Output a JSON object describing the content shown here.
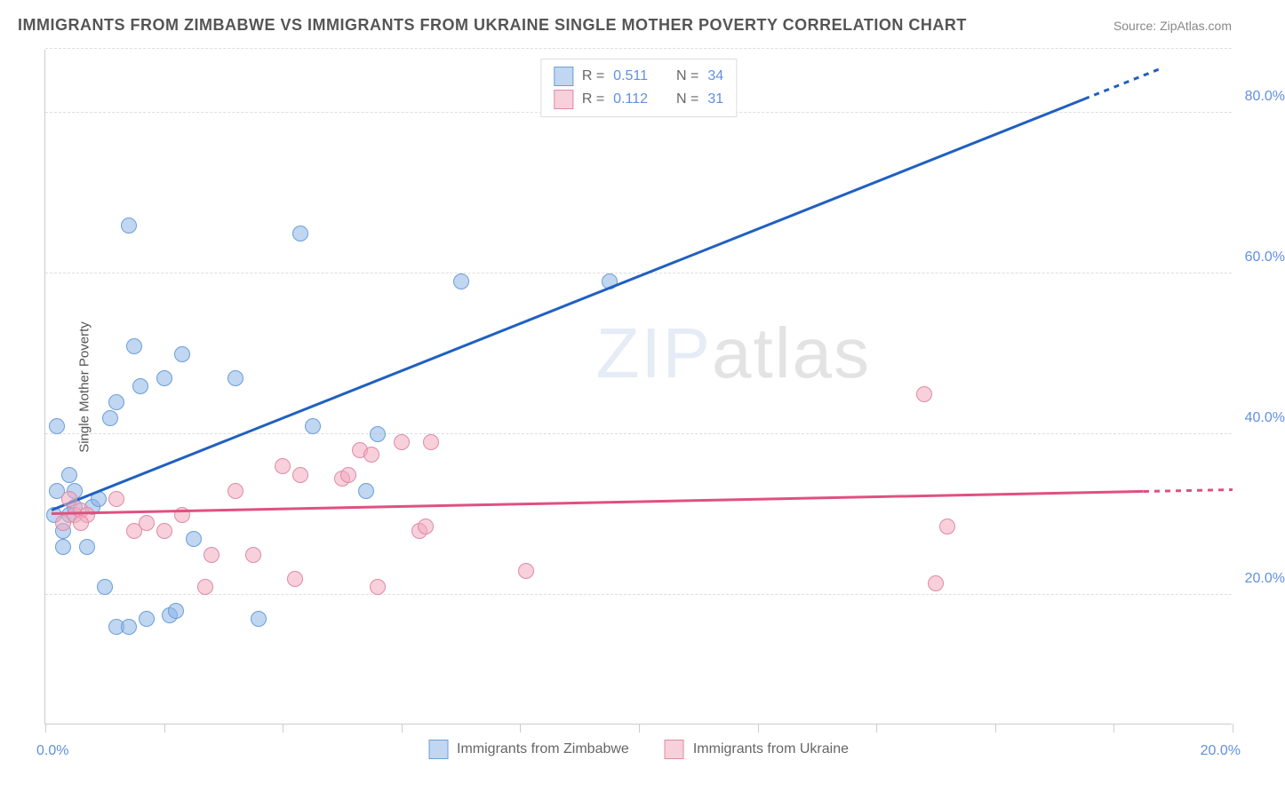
{
  "header": {
    "title": "IMMIGRANTS FROM ZIMBABWE VS IMMIGRANTS FROM UKRAINE SINGLE MOTHER POVERTY CORRELATION CHART",
    "source": "Source: ZipAtlas.com"
  },
  "watermark": {
    "zip": "ZIP",
    "atlas": "atlas"
  },
  "chart": {
    "type": "scatter",
    "y_axis_title": "Single Mother Poverty",
    "xlim": [
      0,
      20
    ],
    "ylim": [
      4,
      88
    ],
    "x_tick_positions": [
      0,
      2,
      4,
      6,
      8,
      10,
      12,
      14,
      16,
      18,
      20
    ],
    "x_tick_labels": {
      "0": "0.0%",
      "20": "20.0%"
    },
    "y_gridlines": [
      20,
      40,
      60,
      80,
      88
    ],
    "y_tick_labels": {
      "20": "20.0%",
      "40": "40.0%",
      "60": "60.0%",
      "80": "80.0%"
    },
    "background_color": "#ffffff",
    "grid_color": "#dddddd",
    "axis_label_color": "#6090e0",
    "axis_line_color": "#cccccc",
    "point_radius": 9,
    "series": [
      {
        "key": "zimbabwe",
        "label": "Immigrants from Zimbabwe",
        "fill_color": "rgba(140, 180, 230, 0.55)",
        "stroke_color": "#6a9fd8",
        "trend_color": "#2060c0",
        "R": "0.511",
        "N": "34",
        "trend": {
          "x1": 0.1,
          "y1": 30.5,
          "x2": 18.8,
          "y2": 85.5,
          "dash_from_x": 17.5
        },
        "data": [
          {
            "x": 0.2,
            "y": 33
          },
          {
            "x": 0.3,
            "y": 28
          },
          {
            "x": 0.4,
            "y": 30
          },
          {
            "x": 0.5,
            "y": 33
          },
          {
            "x": 0.5,
            "y": 31
          },
          {
            "x": 0.4,
            "y": 35
          },
          {
            "x": 0.3,
            "y": 26
          },
          {
            "x": 0.2,
            "y": 41
          },
          {
            "x": 0.8,
            "y": 31
          },
          {
            "x": 0.9,
            "y": 32
          },
          {
            "x": 0.7,
            "y": 26
          },
          {
            "x": 1.0,
            "y": 21
          },
          {
            "x": 1.1,
            "y": 42
          },
          {
            "x": 1.2,
            "y": 16
          },
          {
            "x": 1.4,
            "y": 16
          },
          {
            "x": 1.6,
            "y": 46
          },
          {
            "x": 1.7,
            "y": 17
          },
          {
            "x": 1.5,
            "y": 51
          },
          {
            "x": 1.2,
            "y": 44
          },
          {
            "x": 1.4,
            "y": 66
          },
          {
            "x": 2.1,
            "y": 17.5
          },
          {
            "x": 2.3,
            "y": 50
          },
          {
            "x": 2.2,
            "y": 18
          },
          {
            "x": 2.5,
            "y": 27
          },
          {
            "x": 2.0,
            "y": 47
          },
          {
            "x": 3.2,
            "y": 47
          },
          {
            "x": 3.6,
            "y": 17
          },
          {
            "x": 4.3,
            "y": 65
          },
          {
            "x": 4.5,
            "y": 41
          },
          {
            "x": 5.4,
            "y": 33
          },
          {
            "x": 5.6,
            "y": 40
          },
          {
            "x": 7.0,
            "y": 59
          },
          {
            "x": 9.5,
            "y": 59
          },
          {
            "x": 0.15,
            "y": 30
          }
        ]
      },
      {
        "key": "ukraine",
        "label": "Immigrants from Ukraine",
        "fill_color": "rgba(240, 170, 190, 0.55)",
        "stroke_color": "#e08aa5",
        "trend_color": "#e05080",
        "R": "0.112",
        "N": "31",
        "trend": {
          "x1": 0.1,
          "y1": 30,
          "x2": 20,
          "y2": 33,
          "dash_from_x": 18.5
        },
        "data": [
          {
            "x": 0.3,
            "y": 29
          },
          {
            "x": 0.5,
            "y": 30
          },
          {
            "x": 0.6,
            "y": 30.5
          },
          {
            "x": 0.7,
            "y": 30
          },
          {
            "x": 0.4,
            "y": 32
          },
          {
            "x": 0.6,
            "y": 29
          },
          {
            "x": 1.2,
            "y": 32
          },
          {
            "x": 1.5,
            "y": 28
          },
          {
            "x": 1.7,
            "y": 29
          },
          {
            "x": 2.0,
            "y": 28
          },
          {
            "x": 2.3,
            "y": 30
          },
          {
            "x": 2.7,
            "y": 21
          },
          {
            "x": 2.8,
            "y": 25
          },
          {
            "x": 3.2,
            "y": 33
          },
          {
            "x": 3.5,
            "y": 25
          },
          {
            "x": 4.0,
            "y": 36
          },
          {
            "x": 4.3,
            "y": 35
          },
          {
            "x": 4.2,
            "y": 22
          },
          {
            "x": 5.0,
            "y": 34.5
          },
          {
            "x": 5.1,
            "y": 35
          },
          {
            "x": 5.3,
            "y": 38
          },
          {
            "x": 5.6,
            "y": 21
          },
          {
            "x": 5.5,
            "y": 37.5
          },
          {
            "x": 6.0,
            "y": 39
          },
          {
            "x": 6.3,
            "y": 28
          },
          {
            "x": 6.4,
            "y": 28.5
          },
          {
            "x": 6.5,
            "y": 39
          },
          {
            "x": 8.1,
            "y": 23
          },
          {
            "x": 14.8,
            "y": 45
          },
          {
            "x": 15.2,
            "y": 28.5
          },
          {
            "x": 15.0,
            "y": 21.5
          }
        ]
      }
    ],
    "legend_top": {
      "r_label": "R =",
      "n_label": "N ="
    },
    "bottom_legend_items": [
      "Immigrants from Zimbabwe",
      "Immigrants from Ukraine"
    ]
  }
}
